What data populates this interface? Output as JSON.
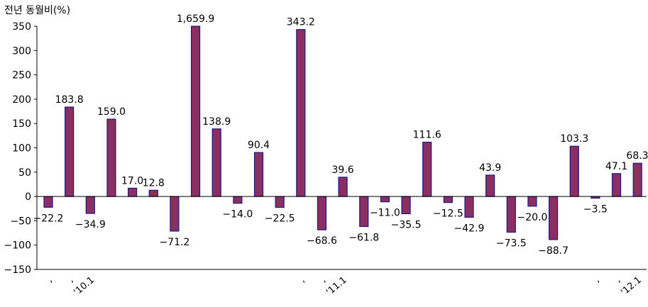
{
  "chart_data": {
    "type": "bar",
    "ylabel": "전년 동월비(%)",
    "ylim": [
      -150,
      350
    ],
    "yticks": [
      -150,
      -100,
      -50,
      0,
      50,
      100,
      150,
      200,
      250,
      300,
      350
    ],
    "bar_color": "#8B2E62",
    "bar_edge_color": "#1A1A80",
    "values": [
      -22.2,
      183.8,
      -34.9,
      159.0,
      17.0,
      12.8,
      -71.2,
      1659.9,
      138.9,
      -14.0,
      90.4,
      -22.5,
      343.2,
      -68.6,
      39.6,
      -61.8,
      -11.0,
      -35.5,
      111.6,
      -12.5,
      -42.9,
      43.9,
      -73.5,
      -20.0,
      -88.7,
      103.3,
      -3.5,
      47.1,
      68.3
    ],
    "value_labels": [
      "-22.2",
      "183.8",
      "-34.9",
      "159.0",
      "17.0",
      "12.8",
      "-71.2",
      "1,659.9",
      "138.9",
      "-14.0",
      "90.4",
      "-22.5",
      "343.2",
      "-68.6",
      "39.6",
      "-61.8",
      "-11.0",
      "-35.5",
      "111.6",
      "-12.5",
      "-42.9",
      "43.9",
      "-73.5",
      "-20.0",
      "-88.7",
      "103.3",
      "-3.5",
      "47.1",
      "68.3"
    ],
    "categories": [
      ",",
      ",",
      "'10.1",
      "",
      "",
      "",
      "",
      "",
      "",
      "",
      "",
      "",
      ",",
      ",",
      "'11.1",
      "",
      "",
      "",
      "",
      "",
      "",
      "",
      "",
      "",
      "",
      "",
      ",",
      ",",
      "'12.1"
    ]
  }
}
